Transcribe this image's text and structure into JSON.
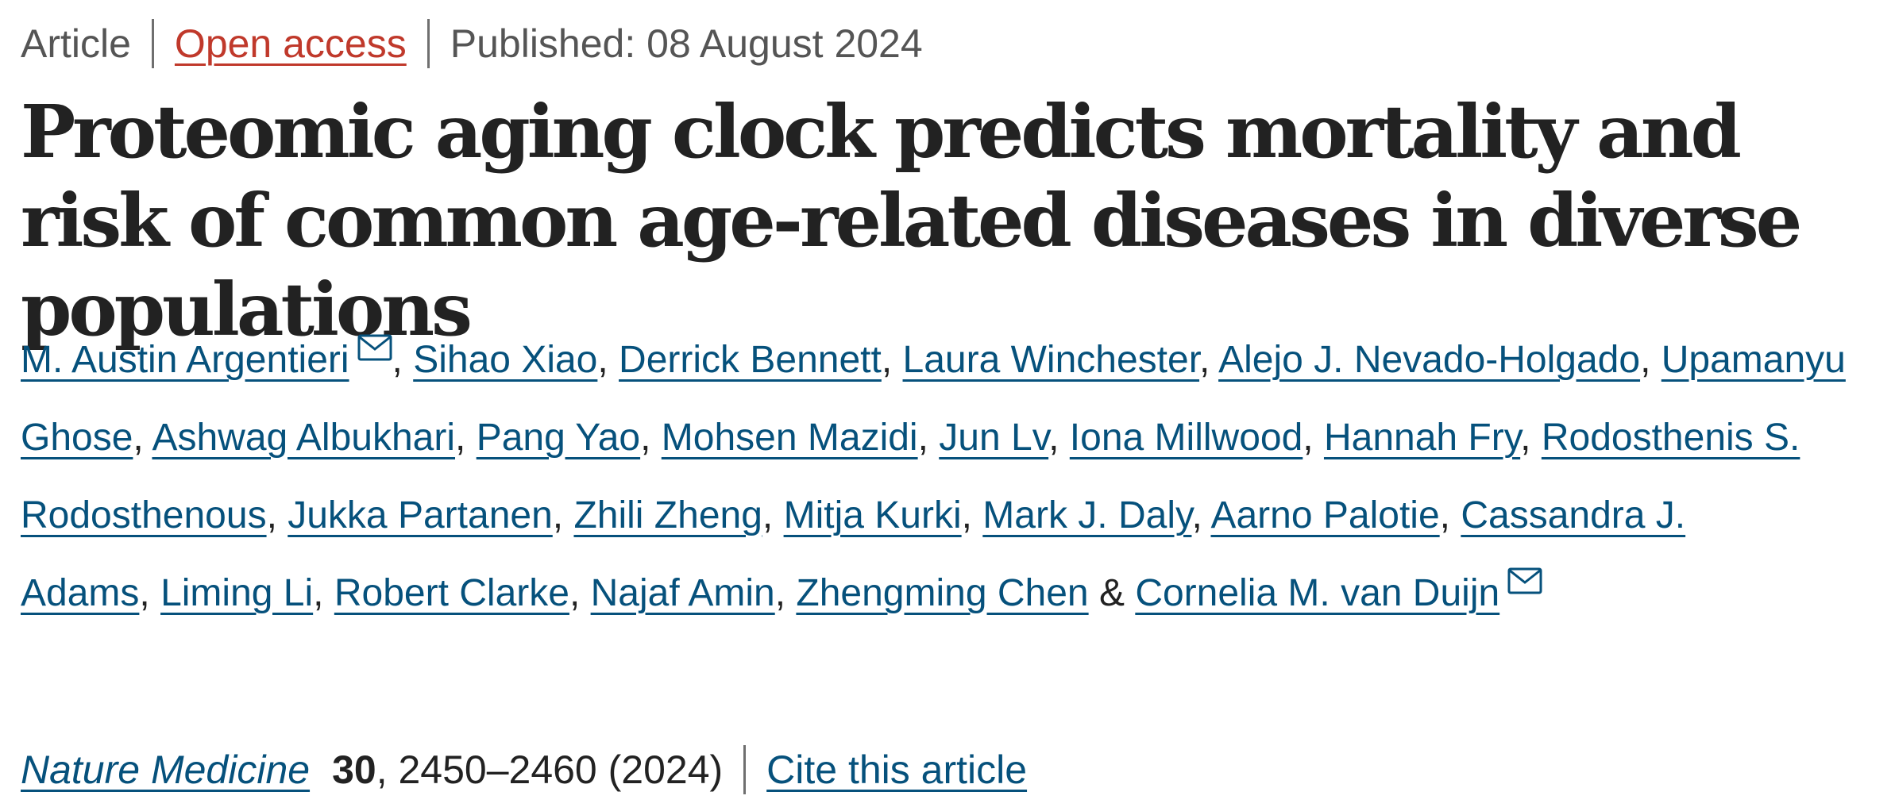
{
  "article_meta": {
    "type": "Article",
    "access": "Open access",
    "published": "Published: 08 August 2024"
  },
  "title": "Proteomic aging clock predicts mortality and risk of common age-related diseases in diverse populations",
  "authors": [
    {
      "name": "M. Austin Argentieri",
      "mail": true
    },
    {
      "name": "Sihao Xiao",
      "mail": false
    },
    {
      "name": "Derrick Bennett",
      "mail": false
    },
    {
      "name": "Laura Winchester",
      "mail": false
    },
    {
      "name": "Alejo J. Nevado-Holgado",
      "mail": false
    },
    {
      "name": "Upamanyu Ghose",
      "mail": false
    },
    {
      "name": "Ashwag Albukhari",
      "mail": false
    },
    {
      "name": "Pang Yao",
      "mail": false
    },
    {
      "name": "Mohsen Mazidi",
      "mail": false
    },
    {
      "name": "Jun Lv",
      "mail": false
    },
    {
      "name": "Iona Millwood",
      "mail": false
    },
    {
      "name": "Hannah Fry",
      "mail": false
    },
    {
      "name": "Rodosthenis S. Rodosthenous",
      "mail": false
    },
    {
      "name": "Jukka Partanen",
      "mail": false
    },
    {
      "name": "Zhili Zheng",
      "mail": false
    },
    {
      "name": "Mitja Kurki",
      "mail": false
    },
    {
      "name": "Mark J. Daly",
      "mail": false
    },
    {
      "name": "Aarno Palotie",
      "mail": false
    },
    {
      "name": "Cassandra J. Adams",
      "mail": false
    },
    {
      "name": "Liming Li",
      "mail": false
    },
    {
      "name": "Robert Clarke",
      "mail": false
    },
    {
      "name": "Najaf Amin",
      "mail": false
    },
    {
      "name": "Zhengming Chen",
      "mail": false
    },
    {
      "name": "Cornelia M. van Duijn",
      "mail": true
    }
  ],
  "author_separator": ", ",
  "author_final_separator": " & ",
  "citation": {
    "journal": "Nature Medicine",
    "volume": "30",
    "pages_year": ", 2450–2460 (2024)",
    "cite_label": "Cite this article"
  },
  "icons": {
    "mail": "mail-icon"
  },
  "colors": {
    "link": "#06517c",
    "open_access": "#c0392b",
    "text": "#222222",
    "muted": "#555555"
  }
}
